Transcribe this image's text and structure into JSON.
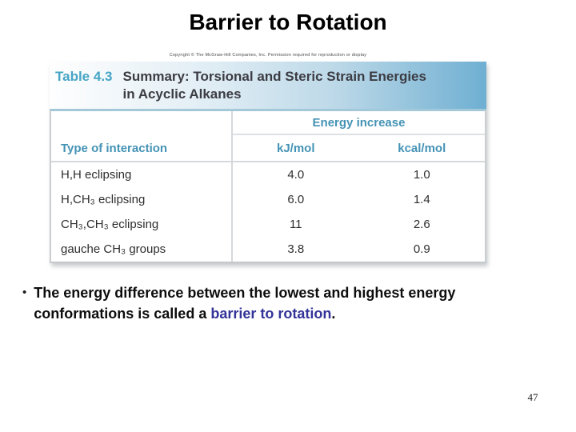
{
  "slide": {
    "title": "Barrier to Rotation",
    "page_number": "47"
  },
  "figure": {
    "copyright": "Copyright © The McGraw-Hill Companies, Inc. Permission required for reproduction or display",
    "table_label": "Table 4.3",
    "table_title_lines": [
      "Summary: Torsional and Steric Strain Energies",
      "in Acyclic Alkanes"
    ],
    "table": {
      "col_group_header": "Energy increase",
      "col_interaction": "Type of interaction",
      "col_kj": "kJ/mol",
      "col_kcal": "kcal/mol",
      "rows": [
        {
          "interaction": "H,H eclipsing",
          "kj": "4.0",
          "kcal": "1.0"
        },
        {
          "interaction": "H,CH₃ eclipsing",
          "kj": "6.0",
          "kcal": "1.4"
        },
        {
          "interaction": "CH₃,CH₃ eclipsing",
          "kj": "11",
          "kcal": "2.6"
        },
        {
          "interaction": "gauche CH₃ groups",
          "kj": "3.8",
          "kcal": "0.9"
        }
      ]
    },
    "colors": {
      "header_teal": "#4493b5",
      "label_teal": "#46a5c5",
      "band_blue": "#6fafd2"
    }
  },
  "bullet": {
    "marker": "•",
    "text_before": "The energy difference between the lowest and highest energy conformations is called a ",
    "highlight": "barrier to rotation",
    "text_after": "."
  }
}
